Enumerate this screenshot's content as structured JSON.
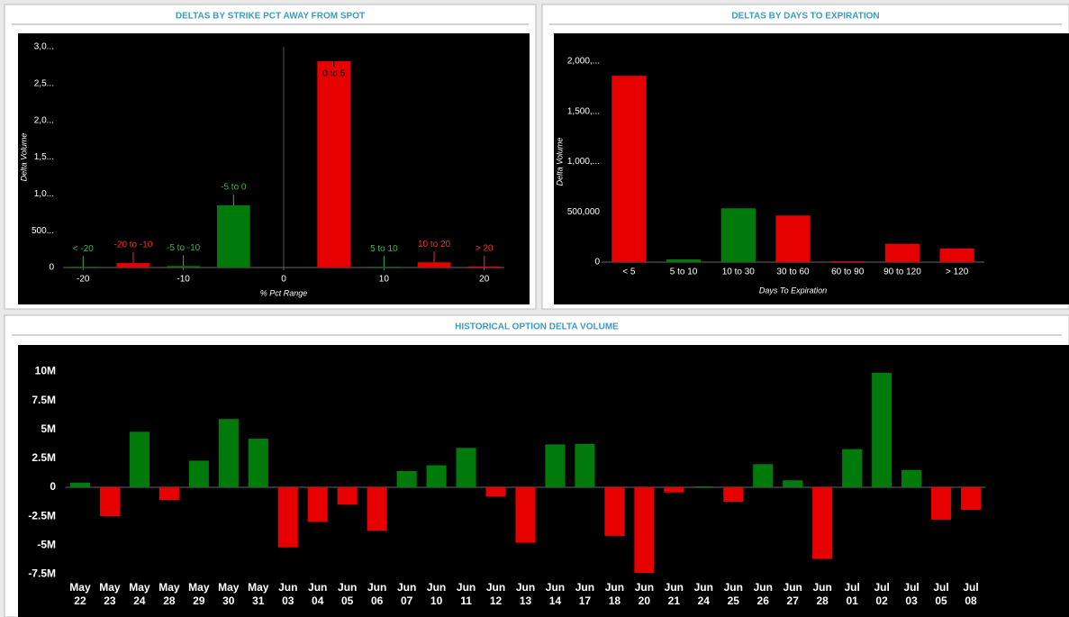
{
  "chart_data": [
    {
      "type": "bar",
      "title": "DELTAS BY STRIKE PCT AWAY FROM SPOT",
      "x_label": "% Pct Range",
      "y_label": "Delta Volume",
      "categories": [
        "< -20",
        "-20 to -10",
        "-5 to -10",
        "-5 to 0",
        "0 to 5",
        "5 to 10",
        "10 to 20",
        "> 20"
      ],
      "x": [
        -20,
        -15,
        -10,
        -5,
        5,
        10,
        15,
        20
      ],
      "values": [
        10,
        60,
        20,
        845,
        2805,
        10,
        70,
        15
      ],
      "colors": [
        "#007a0a",
        "#e60000",
        "#007a0a",
        "#007a0a",
        "#e60000",
        "#007a0a",
        "#e60000",
        "#e60000"
      ],
      "xlim": [
        -22,
        22
      ],
      "xticks": [
        -20,
        -10,
        0,
        10,
        20
      ],
      "ylim": [
        0,
        3000
      ],
      "yticks": [
        0,
        {
          "value": 500,
          "label": "500..."
        },
        {
          "value": 1000,
          "label": "1,0..."
        },
        {
          "value": 1500,
          "label": "1,5..."
        },
        {
          "value": 2000,
          "label": "2,0..."
        },
        {
          "value": 2500,
          "label": "2,5..."
        },
        {
          "value": 3000,
          "label": "3,0..."
        }
      ]
    },
    {
      "type": "bar",
      "title": "DELTAS BY DAYS TO EXPIRATION",
      "x_label": "Days To Expiration",
      "y_label": "Delta Volume",
      "categories": [
        "< 5",
        "5 to 10",
        "10 to 30",
        "30 to 60",
        "60 to 90",
        "90 to 120",
        "> 120"
      ],
      "values": [
        1855000,
        27000,
        536000,
        464000,
        9000,
        182000,
        136000
      ],
      "colors": [
        "#e60000",
        "#007a0a",
        "#007a0a",
        "#e60000",
        "#e60000",
        "#e60000",
        "#e60000"
      ],
      "ylim": [
        0,
        2000000
      ],
      "yticks": [
        0,
        {
          "value": 500000,
          "label": "500,000"
        },
        {
          "value": 1000000,
          "label": "1,000,..."
        },
        {
          "value": 1500000,
          "label": "1,500,..."
        },
        {
          "value": 2000000,
          "label": "2,000,..."
        }
      ]
    },
    {
      "type": "bar",
      "title": "HISTORICAL OPTION DELTA VOLUME",
      "categories": [
        "May 22",
        "May 23",
        "May 24",
        "May 28",
        "May 29",
        "May 30",
        "May 31",
        "Jun 03",
        "Jun 04",
        "Jun 05",
        "Jun 06",
        "Jun 07",
        "Jun 10",
        "Jun 11",
        "Jun 12",
        "Jun 13",
        "Jun 14",
        "Jun 17",
        "Jun 18",
        "Jun 20",
        "Jun 21",
        "Jun 24",
        "Jun 25",
        "Jun 26",
        "Jun 27",
        "Jun 28",
        "Jul 01",
        "Jul 02",
        "Jul 03",
        "Jul 05",
        "Jul 08"
      ],
      "values": [
        400000,
        -2500000,
        4800000,
        -1100000,
        2300000,
        5900000,
        4200000,
        -5200000,
        -3000000,
        -1500000,
        -3750000,
        1400000,
        1900000,
        3400000,
        -800000,
        -4800000,
        3700000,
        3750000,
        -4200000,
        -7400000,
        -450000,
        80000,
        -1250000,
        2000000,
        600000,
        -6200000,
        3300000,
        9900000,
        1500000,
        -2800000,
        -1950000
      ],
      "positive_color": "#007a0a",
      "negative_color": "#e60000",
      "ylim": [
        -8100000,
        12300000
      ],
      "yticks": [
        {
          "value": -7500000,
          "label": "-7.5M"
        },
        {
          "value": -5000000,
          "label": "-5M"
        },
        {
          "value": -2500000,
          "label": "-2.5M"
        },
        0,
        {
          "value": 2500000,
          "label": "2.5M"
        },
        {
          "value": 5000000,
          "label": "5M"
        },
        {
          "value": 7500000,
          "label": "7.5M"
        },
        {
          "value": 10000000,
          "label": "10M"
        }
      ]
    }
  ]
}
